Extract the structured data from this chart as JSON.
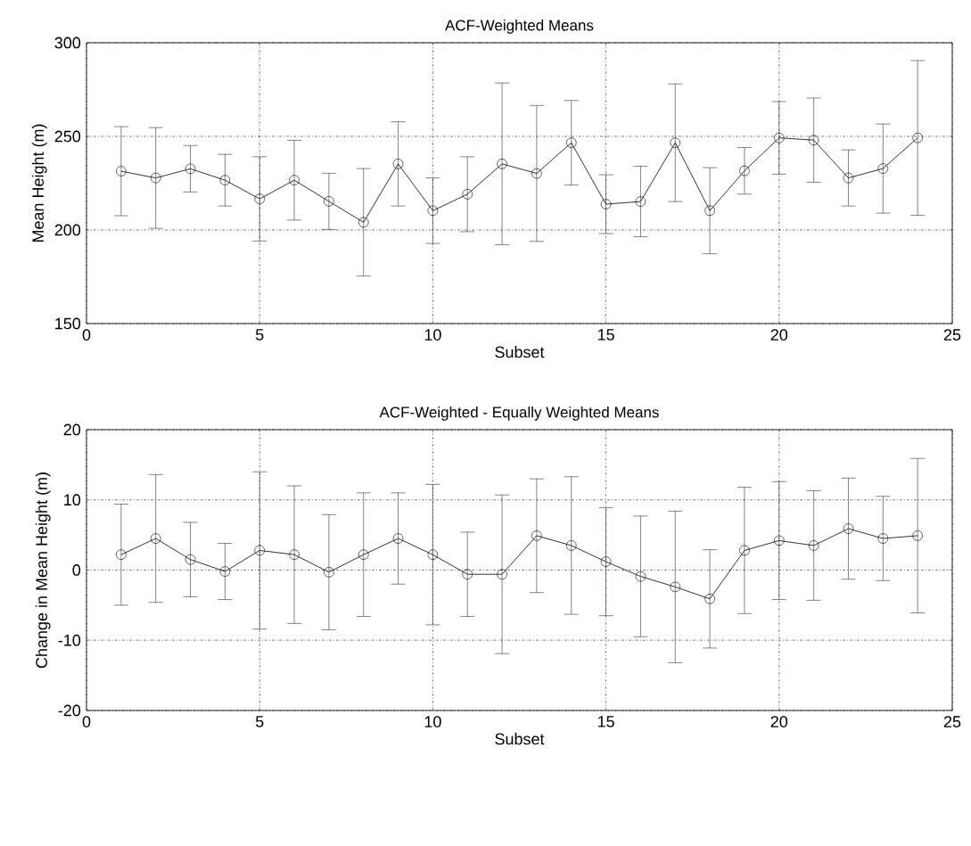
{
  "chart_data": [
    {
      "type": "line",
      "title": "ACF-Weighted Means",
      "xlabel": "Subset",
      "ylabel": "Mean Height (m)",
      "color": "#000000",
      "marker": "circle",
      "grid": true,
      "xlim": [
        0,
        25
      ],
      "ylim": [
        150,
        300
      ],
      "xticks": [
        0,
        5,
        10,
        15,
        20,
        25
      ],
      "yticks": [
        150,
        200,
        250,
        300
      ],
      "x": [
        1,
        2,
        3,
        4,
        5,
        6,
        7,
        8,
        9,
        10,
        11,
        12,
        13,
        14,
        15,
        16,
        17,
        18,
        19,
        20,
        21,
        22,
        23,
        24
      ],
      "values": [
        231.4,
        227.8,
        232.7,
        226.6,
        216.6,
        226.6,
        215.3,
        204.1,
        235.3,
        210.3,
        219.1,
        235.3,
        230.2,
        246.6,
        213.8,
        215.2,
        246.6,
        210.3,
        231.6,
        249.2,
        248.0,
        227.8,
        232.8,
        249.2
      ],
      "errors": [
        23.8,
        26.9,
        12.4,
        13.8,
        22.5,
        21.3,
        15.0,
        28.7,
        22.5,
        17.5,
        20.0,
        43.2,
        36.3,
        22.6,
        15.7,
        18.8,
        31.4,
        23.0,
        12.4,
        19.4,
        22.5,
        15.0,
        23.8,
        41.3
      ]
    },
    {
      "type": "line",
      "title": "ACF-Weighted - Equally Weighted Means",
      "xlabel": "Subset",
      "ylabel": "Change in Mean Height (m)",
      "color": "#000000",
      "marker": "circle",
      "grid": true,
      "xlim": [
        0,
        25
      ],
      "ylim": [
        -20,
        20
      ],
      "xticks": [
        0,
        5,
        10,
        15,
        20,
        25
      ],
      "yticks": [
        -20,
        -10,
        0,
        10,
        20
      ],
      "x": [
        1,
        2,
        3,
        4,
        5,
        6,
        7,
        8,
        9,
        10,
        11,
        12,
        13,
        14,
        15,
        16,
        17,
        18,
        19,
        20,
        21,
        22,
        23,
        24
      ],
      "values": [
        2.2,
        4.5,
        1.5,
        -0.2,
        2.8,
        2.2,
        -0.3,
        2.2,
        4.5,
        2.2,
        -0.6,
        -0.6,
        4.9,
        3.5,
        1.2,
        -0.9,
        -2.4,
        -4.1,
        2.8,
        4.2,
        3.5,
        5.9,
        4.5,
        4.9
      ],
      "errors": [
        7.2,
        9.1,
        5.3,
        4.0,
        11.2,
        9.8,
        8.2,
        8.8,
        6.5,
        10.0,
        6.0,
        11.3,
        8.1,
        9.8,
        7.7,
        8.6,
        10.8,
        7.0,
        9.0,
        8.4,
        7.8,
        7.2,
        6.0,
        11.0
      ]
    }
  ]
}
